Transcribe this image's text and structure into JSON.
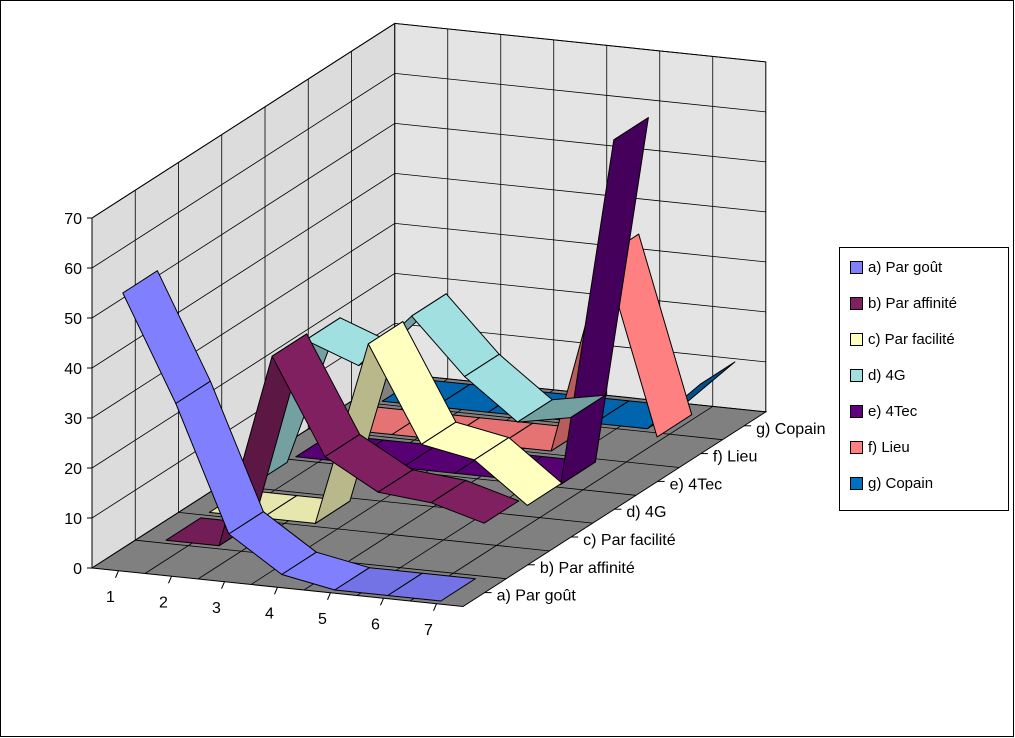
{
  "chart_data": {
    "type": "line",
    "subtype": "3d-ribbon",
    "title": "",
    "xlabel": "",
    "ylabel": "",
    "categories": [
      "1",
      "2",
      "3",
      "4",
      "5",
      "6",
      "7"
    ],
    "ylim": [
      0,
      70
    ],
    "yticks": [
      "0",
      "10",
      "20",
      "30",
      "40",
      "50",
      "60",
      "70"
    ],
    "grid": true,
    "legend_position": "right",
    "series": [
      {
        "name": "a) Par goût",
        "color": "#8080FF",
        "values": [
          55,
          34,
          9,
          2,
          0,
          0,
          0
        ]
      },
      {
        "name": "b) Par affinité",
        "color": "#802060",
        "values": [
          0,
          0,
          39,
          20,
          14,
          13,
          10
        ]
      },
      {
        "name": "c) Par facilité",
        "color": "#FFFFC0",
        "values": [
          0,
          0,
          0,
          37,
          18,
          16,
          8
        ]
      },
      {
        "name": "d) 4G",
        "color": "#A0E0E0",
        "values": [
          0,
          30,
          26,
          37,
          26,
          18,
          20
        ]
      },
      {
        "name": "e) 4Tec",
        "color": "#600080",
        "values": [
          0,
          0,
          0,
          0,
          0,
          0,
          70
        ]
      },
      {
        "name": "f) Lieu",
        "color": "#FF8080",
        "values": [
          0,
          0,
          0,
          0,
          0,
          40,
          5
        ]
      },
      {
        "name": "g) Copain",
        "color": "#0070C0",
        "values": [
          0,
          0,
          0,
          0,
          0,
          0,
          10
        ]
      }
    ]
  }
}
